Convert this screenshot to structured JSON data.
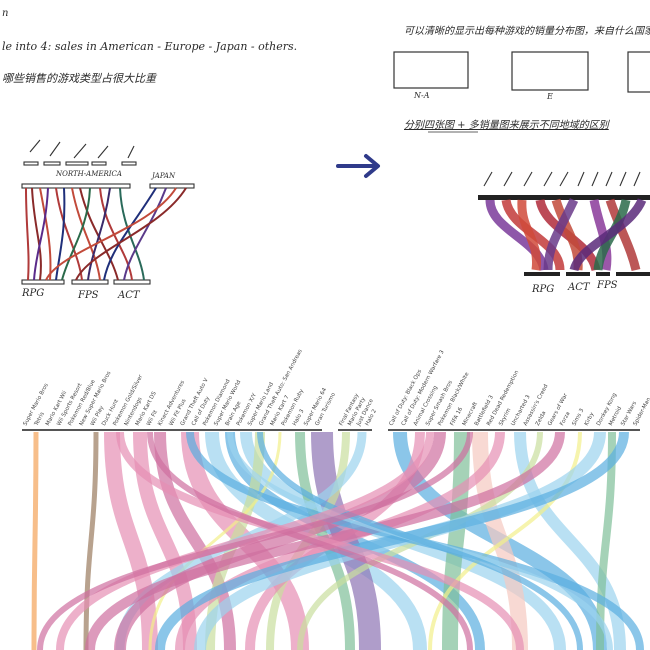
{
  "notes": {
    "line1": "n",
    "line2": "le into 4: sales in American - Europe - Japan - others.",
    "line3": "哪些销售的游戏类型占很大比重",
    "right_top": "可以清晰的显示出每种游戏的销量分布图，来自什么国家",
    "right_mid": "分别四张图 + 多销量图来展示不同地域的区别",
    "box_labels": [
      "N-A",
      "E"
    ]
  },
  "sketch_left": {
    "top_labels": [
      "NORTH-AMERICA",
      "JAPAN"
    ],
    "bottom_labels": [
      "RPG",
      "FPS",
      "ACT"
    ]
  },
  "sketch_right": {
    "bottom_labels": [
      "RPG",
      "ACT",
      "FPS"
    ]
  },
  "arrow_icon": "right-arrow",
  "chart_data": {
    "type": "parallel-sets",
    "left_group_nodes": [
      "Super Mario Bros",
      "Tetris",
      "Mario Kart Wii",
      "Wii Sports Resort",
      "Pokemon Red/Blue",
      "New Super Mario Bros",
      "Wii Play",
      "Duck Hunt",
      "Pokemon Gold/Silver",
      "Nintendogs",
      "Mario Kart DS",
      "Wii Fit",
      "Kinect Adventures",
      "Wii Fit Plus",
      "Grand Theft Auto V",
      "Call of Duty",
      "Pokemon Diamond",
      "Super Mario World",
      "Brain Age",
      "Pokemon X/Y",
      "Super Mario Land",
      "Grand Theft Auto: San Andreas",
      "Mario Kart 7",
      "Pokemon Ruby",
      "Halo 3",
      "Super Mario 64",
      "Gran Turismo"
    ],
    "middle_group_nodes": [
      "Final Fantasy",
      "Mario Party",
      "Just Dance",
      "Halo 2"
    ],
    "right_group_nodes": [
      "Call of Duty: Black Ops",
      "Call of Duty: Modern Warfare 3",
      "Animal Crossing",
      "Super Smash Bros",
      "Pokemon Black/White",
      "FIFA 16",
      "Minecraft",
      "Battlefield 3",
      "Red Dead Redemption",
      "Skyrim",
      "Uncharted 3",
      "Assassin's Creed",
      "Zelda",
      "Gears of War",
      "Forza",
      "Sims 3",
      "Kirby",
      "Donkey Kong",
      "Metroid",
      "Star Wars",
      "Spider-Man"
    ],
    "colors": [
      "#f4a259",
      "#9a7b5e",
      "#e58fb3",
      "#cf6fa0",
      "#f2ef8a",
      "#c9de9e",
      "#9bd3ee",
      "#5aaee0",
      "#7fbf99",
      "#8d73b3",
      "#f5c9c0"
    ]
  }
}
